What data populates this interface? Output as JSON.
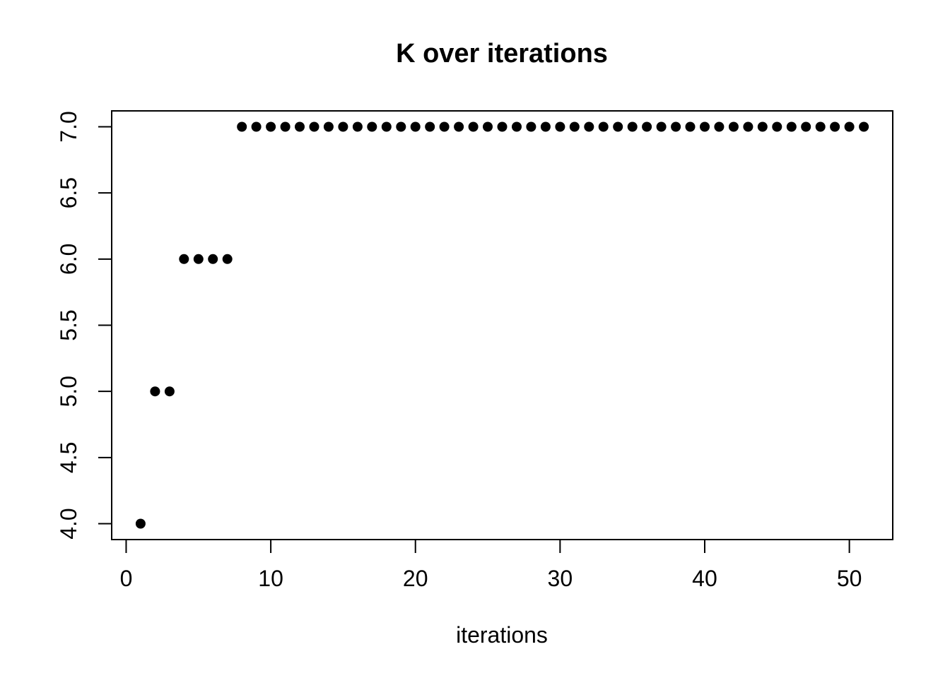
{
  "page": {
    "background_color": "#ffffff",
    "foreground_color": "#000000"
  },
  "chart_data": {
    "type": "scatter",
    "title": "K over iterations",
    "xlabel": "iterations",
    "ylabel": "",
    "x": [
      1,
      2,
      3,
      4,
      5,
      6,
      7,
      8,
      9,
      10,
      11,
      12,
      13,
      14,
      15,
      16,
      17,
      18,
      19,
      20,
      21,
      22,
      23,
      24,
      25,
      26,
      27,
      28,
      29,
      30,
      31,
      32,
      33,
      34,
      35,
      36,
      37,
      38,
      39,
      40,
      41,
      42,
      43,
      44,
      45,
      46,
      47,
      48,
      49,
      50,
      51
    ],
    "y": [
      4,
      5,
      5,
      6,
      6,
      6,
      6,
      7,
      7,
      7,
      7,
      7,
      7,
      7,
      7,
      7,
      7,
      7,
      7,
      7,
      7,
      7,
      7,
      7,
      7,
      7,
      7,
      7,
      7,
      7,
      7,
      7,
      7,
      7,
      7,
      7,
      7,
      7,
      7,
      7,
      7,
      7,
      7,
      7,
      7,
      7,
      7,
      7,
      7,
      7,
      7
    ],
    "xticks": [
      0,
      10,
      20,
      30,
      40,
      50
    ],
    "xtick_labels": [
      "0",
      "10",
      "20",
      "30",
      "40",
      "50"
    ],
    "yticks": [
      4,
      4.5,
      5,
      5.5,
      6,
      6.5,
      7
    ],
    "ytick_labels": [
      "4.0",
      "4.5",
      "5.0",
      "5.5",
      "6.0",
      "6.5",
      "7.0"
    ],
    "xlim": [
      -1,
      53
    ],
    "ylim": [
      3.88,
      7.12
    ],
    "grid": false,
    "legend": null,
    "marker": "filled-circle",
    "point_radius": 7,
    "point_color": "#000000",
    "axis_color": "#000000"
  }
}
